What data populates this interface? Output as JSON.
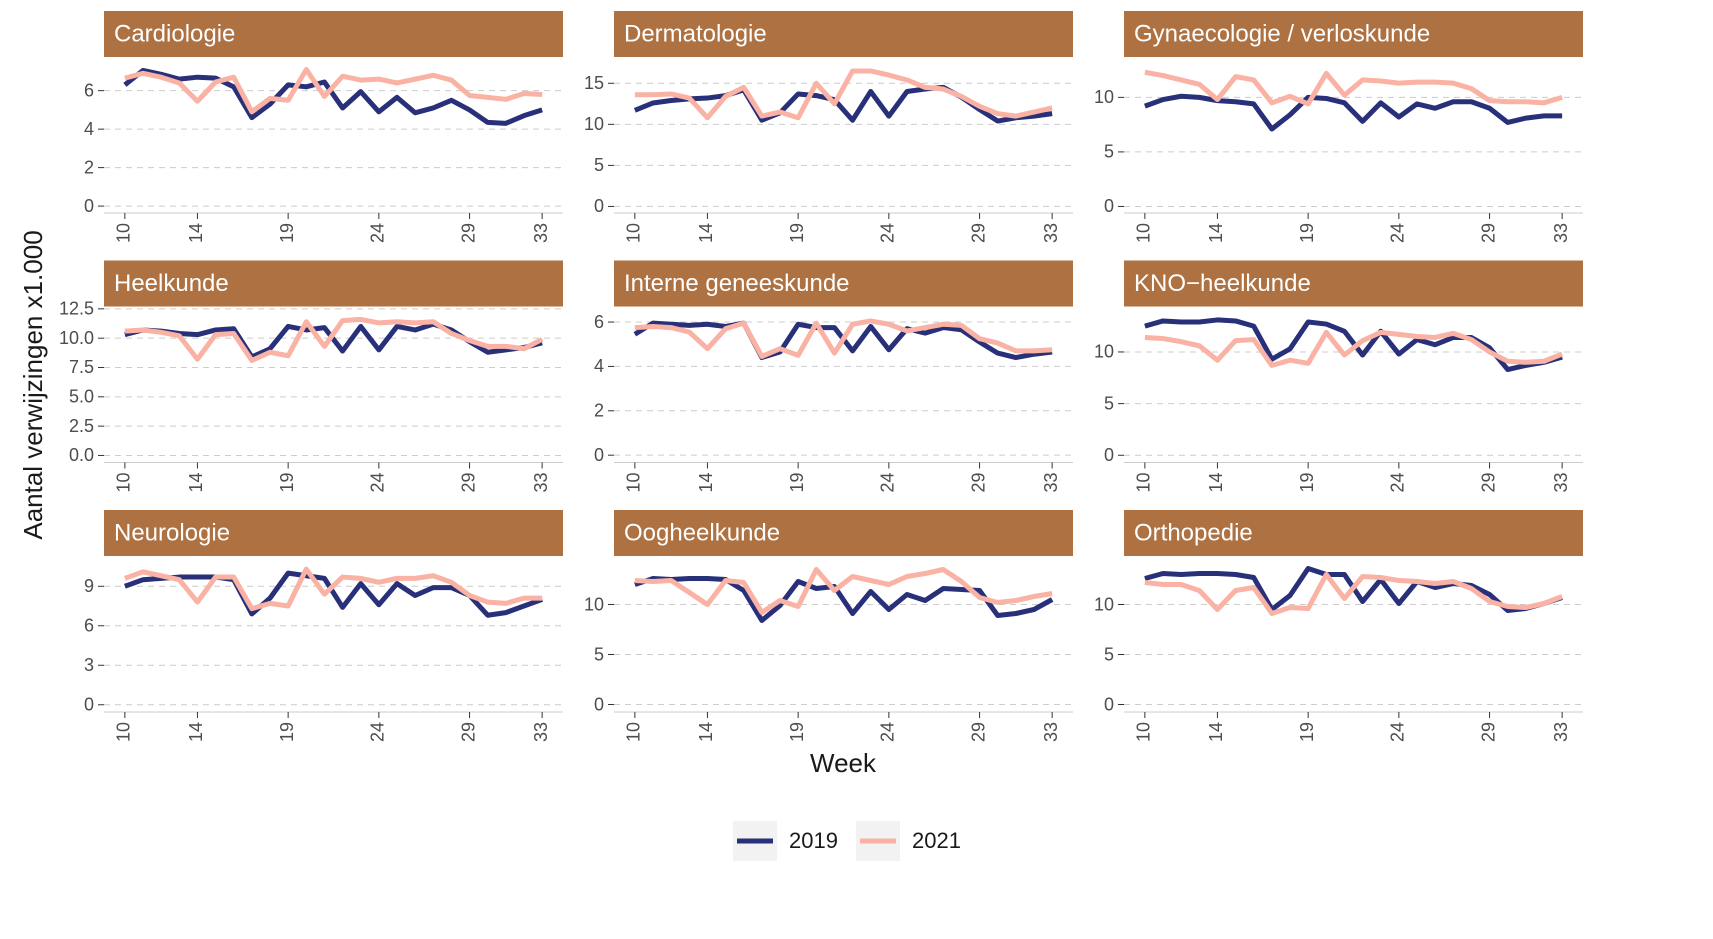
{
  "y_label": "Aantal verwijzingen x1.000",
  "x_label": "Week",
  "chart_data": [
    {
      "type": "line",
      "title": "Cardiologie",
      "x": [
        10,
        11,
        12,
        13,
        14,
        15,
        16,
        17,
        18,
        19,
        20,
        21,
        22,
        23,
        24,
        25,
        26,
        27,
        28,
        29,
        30,
        31,
        32,
        33
      ],
      "xlim": [
        8.85,
        34.15
      ],
      "xticks": [
        10,
        14,
        19,
        24,
        29,
        33
      ],
      "ylim": [
        -0.36,
        7.75
      ],
      "yticks": [
        0,
        2,
        4,
        6
      ],
      "grid": true,
      "series": [
        {
          "name": "2019",
          "color": "#283079",
          "values": [
            6.3,
            7.05,
            6.85,
            6.6,
            6.7,
            6.65,
            6.2,
            4.6,
            5.3,
            6.3,
            6.2,
            6.45,
            5.1,
            5.95,
            4.9,
            5.65,
            4.85,
            5.1,
            5.5,
            5.0,
            4.35,
            4.3,
            4.7,
            5.0
          ]
        },
        {
          "name": "2021",
          "color": "#f9b2a3",
          "values": [
            6.65,
            6.9,
            6.7,
            6.4,
            5.45,
            6.45,
            6.7,
            4.9,
            5.6,
            5.5,
            7.1,
            5.7,
            6.75,
            6.55,
            6.6,
            6.4,
            6.6,
            6.8,
            6.55,
            5.75,
            5.65,
            5.55,
            5.85,
            5.8
          ]
        }
      ]
    },
    {
      "type": "line",
      "title": "Dermatologie",
      "x": [
        10,
        11,
        12,
        13,
        14,
        15,
        16,
        17,
        18,
        19,
        20,
        21,
        22,
        23,
        24,
        25,
        26,
        27,
        28,
        29,
        30,
        31,
        32,
        33
      ],
      "xlim": [
        8.85,
        34.15
      ],
      "xticks": [
        10,
        14,
        19,
        24,
        29,
        33
      ],
      "ylim": [
        -0.8,
        18.2
      ],
      "yticks": [
        0,
        5,
        10,
        15
      ],
      "grid": true,
      "series": [
        {
          "name": "2019",
          "color": "#283079",
          "values": [
            11.7,
            12.6,
            12.9,
            13.1,
            13.2,
            13.5,
            14.2,
            10.5,
            11.4,
            13.7,
            13.5,
            13.0,
            10.5,
            14.0,
            11.0,
            14.0,
            14.3,
            14.5,
            13.3,
            11.8,
            10.4,
            10.8,
            11.0,
            11.3
          ]
        },
        {
          "name": "2021",
          "color": "#f9b2a3",
          "values": [
            13.6,
            13.6,
            13.7,
            13.2,
            10.8,
            13.4,
            14.5,
            11.0,
            11.5,
            10.8,
            15.0,
            12.5,
            16.5,
            16.5,
            16.0,
            15.4,
            14.5,
            14.3,
            13.4,
            12.2,
            11.3,
            11.0,
            11.5,
            12.0
          ]
        }
      ]
    },
    {
      "type": "line",
      "title": "Gynaecologie / verloskunde",
      "x": [
        10,
        11,
        12,
        13,
        14,
        15,
        16,
        17,
        18,
        19,
        20,
        21,
        22,
        23,
        24,
        25,
        26,
        27,
        28,
        29,
        30,
        31,
        32,
        33
      ],
      "xlim": [
        8.85,
        34.15
      ],
      "xticks": [
        10,
        14,
        19,
        24,
        29,
        33
      ],
      "ylim": [
        -0.6,
        13.7
      ],
      "yticks": [
        0,
        5,
        10
      ],
      "grid": true,
      "series": [
        {
          "name": "2019",
          "color": "#283079",
          "values": [
            9.2,
            9.8,
            10.1,
            10.0,
            9.7,
            9.6,
            9.4,
            7.1,
            8.4,
            10.0,
            9.9,
            9.5,
            7.8,
            9.5,
            8.2,
            9.4,
            9.0,
            9.6,
            9.6,
            9.0,
            7.7,
            8.1,
            8.3,
            8.3
          ]
        },
        {
          "name": "2021",
          "color": "#f9b2a3",
          "values": [
            12.3,
            12.0,
            11.6,
            11.2,
            9.8,
            11.9,
            11.6,
            9.5,
            10.1,
            9.4,
            12.2,
            10.2,
            11.6,
            11.5,
            11.3,
            11.4,
            11.4,
            11.3,
            10.8,
            9.7,
            9.6,
            9.6,
            9.5,
            10.0
          ]
        }
      ]
    },
    {
      "type": "line",
      "title": "Heelkunde",
      "x": [
        10,
        11,
        12,
        13,
        14,
        15,
        16,
        17,
        18,
        19,
        20,
        21,
        22,
        23,
        24,
        25,
        26,
        27,
        28,
        29,
        30,
        31,
        32,
        33
      ],
      "xlim": [
        8.85,
        34.15
      ],
      "xticks": [
        10,
        14,
        19,
        24,
        29,
        33
      ],
      "ylim": [
        -0.6,
        12.7
      ],
      "yticks": [
        {
          "value": 0,
          "label": "0.0"
        },
        2.5,
        {
          "value": 5,
          "label": "5.0"
        },
        7.5,
        {
          "value": 10,
          "label": "10.0"
        },
        12.5
      ],
      "grid": true,
      "series": [
        {
          "name": "2019",
          "color": "#283079",
          "values": [
            10.3,
            10.7,
            10.6,
            10.4,
            10.3,
            10.7,
            10.8,
            8.4,
            9.1,
            11.0,
            10.7,
            10.9,
            8.9,
            11.0,
            9.0,
            11.0,
            10.7,
            11.2,
            10.7,
            9.7,
            8.8,
            9.0,
            9.2,
            9.6
          ]
        },
        {
          "name": "2021",
          "color": "#f9b2a3",
          "values": [
            10.6,
            10.7,
            10.5,
            10.2,
            8.2,
            10.3,
            10.4,
            8.1,
            8.8,
            8.5,
            11.4,
            9.3,
            11.5,
            11.6,
            11.3,
            11.4,
            11.3,
            11.4,
            10.4,
            9.8,
            9.3,
            9.3,
            9.1,
            9.9
          ]
        }
      ]
    },
    {
      "type": "line",
      "title": "Interne geneeskunde",
      "x": [
        10,
        11,
        12,
        13,
        14,
        15,
        16,
        17,
        18,
        19,
        20,
        21,
        22,
        23,
        24,
        25,
        26,
        27,
        28,
        29,
        30,
        31,
        32,
        33
      ],
      "xlim": [
        8.85,
        34.15
      ],
      "xticks": [
        10,
        14,
        19,
        24,
        29,
        33
      ],
      "ylim": [
        -0.33,
        6.7
      ],
      "yticks": [
        0,
        2,
        4,
        6
      ],
      "grid": true,
      "series": [
        {
          "name": "2019",
          "color": "#283079",
          "values": [
            5.45,
            5.95,
            5.9,
            5.85,
            5.9,
            5.8,
            5.95,
            4.4,
            4.65,
            5.9,
            5.75,
            5.75,
            4.7,
            5.8,
            4.75,
            5.7,
            5.5,
            5.75,
            5.65,
            5.1,
            4.6,
            4.4,
            4.55,
            4.65
          ]
        },
        {
          "name": "2021",
          "color": "#f9b2a3",
          "values": [
            5.75,
            5.8,
            5.75,
            5.55,
            4.8,
            5.7,
            5.95,
            4.45,
            4.8,
            4.5,
            5.95,
            4.6,
            5.9,
            6.05,
            5.9,
            5.6,
            5.75,
            5.9,
            5.85,
            5.25,
            5.05,
            4.7,
            4.7,
            4.75
          ]
        }
      ]
    },
    {
      "type": "line",
      "title": "KNO−heelkunde",
      "x": [
        10,
        11,
        12,
        13,
        14,
        15,
        16,
        17,
        18,
        19,
        20,
        21,
        22,
        23,
        24,
        25,
        26,
        27,
        28,
        29,
        30,
        31,
        32,
        33
      ],
      "xlim": [
        8.85,
        34.15
      ],
      "xticks": [
        10,
        14,
        19,
        24,
        29,
        33
      ],
      "ylim": [
        -0.7,
        14.4
      ],
      "yticks": [
        0,
        5,
        10
      ],
      "grid": true,
      "series": [
        {
          "name": "2019",
          "color": "#283079",
          "values": [
            12.5,
            13.0,
            12.9,
            12.9,
            13.1,
            13.0,
            12.5,
            9.3,
            10.3,
            12.9,
            12.7,
            12.0,
            9.7,
            12.0,
            9.8,
            11.2,
            10.7,
            11.4,
            11.4,
            10.4,
            8.3,
            8.7,
            9.0,
            9.5
          ]
        },
        {
          "name": "2021",
          "color": "#f9b2a3",
          "values": [
            11.4,
            11.3,
            11.0,
            10.6,
            9.2,
            11.1,
            11.2,
            8.7,
            9.2,
            8.9,
            11.9,
            9.7,
            11.1,
            11.9,
            11.7,
            11.5,
            11.4,
            11.8,
            11.2,
            10.0,
            9.1,
            9.0,
            9.1,
            9.8
          ]
        }
      ]
    },
    {
      "type": "line",
      "title": "Neurologie",
      "x": [
        10,
        11,
        12,
        13,
        14,
        15,
        16,
        17,
        18,
        19,
        20,
        21,
        22,
        23,
        24,
        25,
        26,
        27,
        28,
        29,
        30,
        31,
        32,
        33
      ],
      "xlim": [
        8.85,
        34.15
      ],
      "xticks": [
        10,
        14,
        19,
        24,
        29,
        33
      ],
      "ylim": [
        -0.55,
        11.3
      ],
      "yticks": [
        0,
        3,
        6,
        9
      ],
      "grid": true,
      "series": [
        {
          "name": "2019",
          "color": "#283079",
          "values": [
            9.0,
            9.5,
            9.6,
            9.7,
            9.7,
            9.7,
            9.5,
            6.9,
            8.1,
            10.0,
            9.8,
            9.6,
            7.4,
            9.2,
            7.6,
            9.2,
            8.3,
            8.9,
            8.9,
            8.3,
            6.8,
            7.0,
            7.5,
            8.0
          ]
        },
        {
          "name": "2021",
          "color": "#f9b2a3",
          "values": [
            9.6,
            10.1,
            9.8,
            9.5,
            7.8,
            9.7,
            9.7,
            7.3,
            7.7,
            7.5,
            10.3,
            8.4,
            9.7,
            9.6,
            9.3,
            9.6,
            9.6,
            9.8,
            9.3,
            8.3,
            7.8,
            7.7,
            8.1,
            8.1
          ]
        }
      ]
    },
    {
      "type": "line",
      "title": "Oogheelkunde",
      "x": [
        10,
        11,
        12,
        13,
        14,
        15,
        16,
        17,
        18,
        19,
        20,
        21,
        22,
        23,
        24,
        25,
        26,
        27,
        28,
        29,
        30,
        31,
        32,
        33
      ],
      "xlim": [
        8.85,
        34.15
      ],
      "xticks": [
        10,
        14,
        19,
        24,
        29,
        33
      ],
      "ylim": [
        -0.75,
        14.85
      ],
      "yticks": [
        0,
        5,
        10
      ],
      "grid": true,
      "series": [
        {
          "name": "2019",
          "color": "#283079",
          "values": [
            12.0,
            12.6,
            12.5,
            12.6,
            12.6,
            12.5,
            11.4,
            8.4,
            9.9,
            12.3,
            11.6,
            11.8,
            9.1,
            11.3,
            9.5,
            11.0,
            10.4,
            11.6,
            11.5,
            11.4,
            8.9,
            9.1,
            9.5,
            10.5
          ]
        },
        {
          "name": "2021",
          "color": "#f9b2a3",
          "values": [
            12.4,
            12.3,
            12.4,
            11.2,
            10.0,
            12.4,
            12.2,
            9.2,
            10.4,
            9.8,
            13.5,
            11.4,
            12.8,
            12.4,
            12.0,
            12.8,
            13.1,
            13.5,
            12.3,
            10.7,
            10.2,
            10.4,
            10.8,
            11.1
          ]
        }
      ]
    },
    {
      "type": "line",
      "title": "Orthopedie",
      "x": [
        10,
        11,
        12,
        13,
        14,
        15,
        16,
        17,
        18,
        19,
        20,
        21,
        22,
        23,
        24,
        25,
        26,
        27,
        28,
        29,
        30,
        31,
        32,
        33
      ],
      "xlim": [
        8.85,
        34.15
      ],
      "xticks": [
        10,
        14,
        19,
        24,
        29,
        33
      ],
      "ylim": [
        -0.75,
        14.85
      ],
      "yticks": [
        0,
        5,
        10
      ],
      "grid": true,
      "series": [
        {
          "name": "2019",
          "color": "#283079",
          "values": [
            12.6,
            13.1,
            13.0,
            13.1,
            13.1,
            13.0,
            12.7,
            9.5,
            10.9,
            13.6,
            13.0,
            13.0,
            10.3,
            12.5,
            10.1,
            12.3,
            11.7,
            12.1,
            11.9,
            11.0,
            9.4,
            9.6,
            10.1,
            10.7
          ]
        },
        {
          "name": "2021",
          "color": "#f9b2a3",
          "values": [
            12.2,
            12.0,
            12.0,
            11.4,
            9.5,
            11.4,
            11.7,
            9.1,
            9.7,
            9.6,
            13.0,
            10.6,
            12.8,
            12.7,
            12.4,
            12.3,
            12.1,
            12.3,
            11.6,
            10.3,
            9.8,
            9.7,
            10.1,
            10.8
          ]
        }
      ]
    }
  ]
}
